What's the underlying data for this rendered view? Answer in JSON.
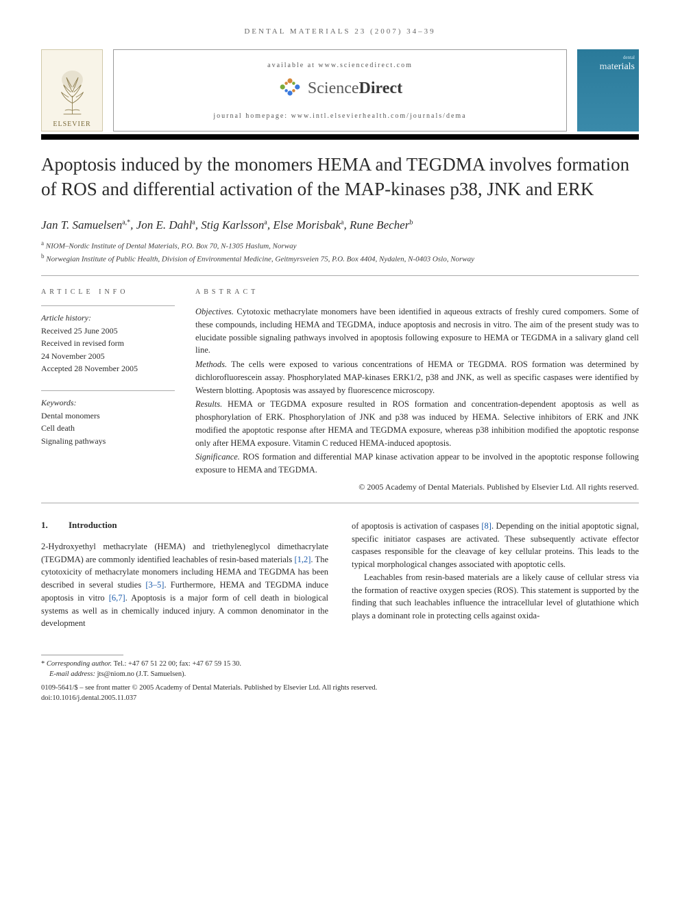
{
  "running_head": "DENTAL MATERIALS 23 (2007) 34–39",
  "banner": {
    "elsevier": "ELSEVIER",
    "available": "available at www.sciencedirect.com",
    "sd_light": "Science",
    "sd_bold": "Direct",
    "homepage": "journal homepage: www.intl.elsevierhealth.com/journals/dema",
    "cover_small": "dental",
    "cover_title_light": "mat",
    "cover_title": "erials"
  },
  "title": "Apoptosis induced by the monomers HEMA and TEGDMA involves formation of ROS and differential activation of the MAP-kinases p38, JNK and ERK",
  "authors_html": "Jan T. Samuelsen<sup>a,*</sup>, Jon E. Dahl<sup>a</sup>, Stig Karlsson<sup>a</sup>, Else Morisbak<sup>a</sup>, Rune Becher<sup>b</sup>",
  "affiliations": [
    {
      "sup": "a",
      "text": "NIOM–Nordic Institute of Dental Materials, P.O. Box 70, N-1305 Haslum, Norway"
    },
    {
      "sup": "b",
      "text": "Norwegian Institute of Public Health, Division of Environmental Medicine, Geitmyrsveien 75, P.O. Box 4404, Nydalen, N-0403 Oslo, Norway"
    }
  ],
  "info": {
    "head": "ARTICLE INFO",
    "history_label": "Article history:",
    "received": "Received 25 June 2005",
    "revised1": "Received in revised form",
    "revised2": "24 November 2005",
    "accepted": "Accepted 28 November 2005",
    "keywords_label": "Keywords:",
    "kw1": "Dental monomers",
    "kw2": "Cell death",
    "kw3": "Signaling pathways"
  },
  "abstract": {
    "head": "ABSTRACT",
    "objectives_lead": "Objectives.",
    "objectives": " Cytotoxic methacrylate monomers have been identified in aqueous extracts of freshly cured compomers. Some of these compounds, including HEMA and TEGDMA, induce apoptosis and necrosis in vitro. The aim of the present study was to elucidate possible signaling pathways involved in apoptosis following exposure to HEMA or TEGDMA in a salivary gland cell line.",
    "methods_lead": "Methods.",
    "methods": " The cells were exposed to various concentrations of HEMA or TEGDMA. ROS formation was determined by dichlorofluorescein assay. Phosphorylated MAP-kinases ERK1/2, p38 and JNK, as well as specific caspases were identified by Western blotting. Apoptosis was assayed by fluorescence microscopy.",
    "results_lead": "Results.",
    "results": " HEMA or TEGDMA exposure resulted in ROS formation and concentration-dependent apoptosis as well as phosphorylation of ERK. Phosphorylation of JNK and p38 was induced by HEMA. Selective inhibitors of ERK and JNK modified the apoptotic response after HEMA and TEGDMA exposure, whereas p38 inhibition modified the apoptotic response only after HEMA exposure. Vitamin C reduced HEMA-induced apoptosis.",
    "significance_lead": "Significance.",
    "significance": " ROS formation and differential MAP kinase activation appear to be involved in the apoptotic response following exposure to HEMA and TEGDMA.",
    "copyright": "© 2005 Academy of Dental Materials. Published by Elsevier Ltd. All rights reserved."
  },
  "section1": {
    "num": "1.",
    "title": "Introduction",
    "left_p1a": "2-Hydroxyethyl methacrylate (HEMA) and triethyleneglycol dimethacrylate (TEGDMA) are commonly identified leachables of resin-based materials ",
    "left_ref1": "[1,2]",
    "left_p1b": ". The cytotoxicity of methacrylate monomers including HEMA and TEGDMA has been described in several studies ",
    "left_ref2": "[3–5]",
    "left_p1c": ". Furthermore, HEMA and TEGDMA induce apoptosis in vitro ",
    "left_ref3": "[6,7]",
    "left_p1d": ". Apoptosis is a major form of cell death in biological systems as well as in chemically induced injury. A common denominator in the development",
    "right_p1a": "of apoptosis is activation of caspases ",
    "right_ref1": "[8]",
    "right_p1b": ". Depending on the initial apoptotic signal, specific initiator caspases are activated. These subsequently activate effector caspases responsible for the cleavage of key cellular proteins. This leads to the typical morphological changes associated with apoptotic cells.",
    "right_p2": "Leachables from resin-based materials are a likely cause of cellular stress via the formation of reactive oxygen species (ROS). This statement is supported by the finding that such leachables influence the intracellular level of glutathione which plays a dominant role in protecting cells against oxida-"
  },
  "footnote": {
    "corr_label": "Corresponding author.",
    "corr_text": " Tel.: +47 67 51 22 00; fax: +47 67 59 15 30.",
    "email_label": "E-mail address: ",
    "email": "jts@niom.no",
    "email_who": " (J.T. Samuelsen)."
  },
  "footer": {
    "line1": "0109-5641/$ – see front matter © 2005 Academy of Dental Materials. Published by Elsevier Ltd. All rights reserved.",
    "line2": "doi:10.1016/j.dental.2005.11.037"
  },
  "colors": {
    "link": "#1a5aaa",
    "elsevier_bg": "#f8f4e8",
    "cover_bg": "#2a7a9a"
  }
}
